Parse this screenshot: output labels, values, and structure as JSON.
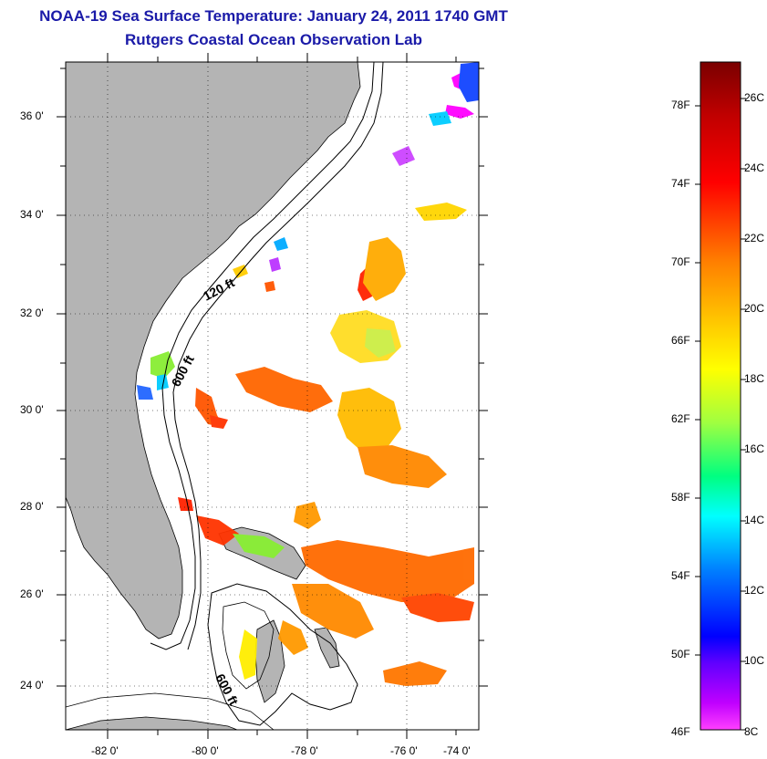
{
  "title": "NOAA-19 Sea Surface Temperature:  January 24, 2011 1740 GMT",
  "subtitle": "Rutgers Coastal Ocean Observation Lab",
  "map": {
    "lat_labels": [
      "36 0'",
      "34 0'",
      "32 0'",
      "30 0'",
      "28 0'",
      "26 0'",
      "24 0'"
    ],
    "lon_labels": [
      "-82 0'",
      "-80 0'",
      "-78 0'",
      "-76 0'",
      "-74 0'"
    ],
    "contour_labels": [
      "120 ft",
      "600 ft",
      "600 ft"
    ],
    "colors": {
      "land": "#b4b4b4",
      "ocean": "#ffffff",
      "contour": "#000000"
    }
  },
  "colorbar": {
    "fahrenheit_labels": [
      "78F",
      "74F",
      "70F",
      "66F",
      "62F",
      "58F",
      "54F",
      "50F",
      "46F"
    ],
    "celsius_labels": [
      "26C",
      "24C",
      "22C",
      "20C",
      "18C",
      "16C",
      "14C",
      "12C",
      "10C",
      "8C"
    ],
    "colors": [
      "#7a0000",
      "#ff0000",
      "#ff8000",
      "#ffff00",
      "#00ff80",
      "#00ffff",
      "#0040ff",
      "#0000c0",
      "#8000ff",
      "#ff00ff"
    ]
  }
}
